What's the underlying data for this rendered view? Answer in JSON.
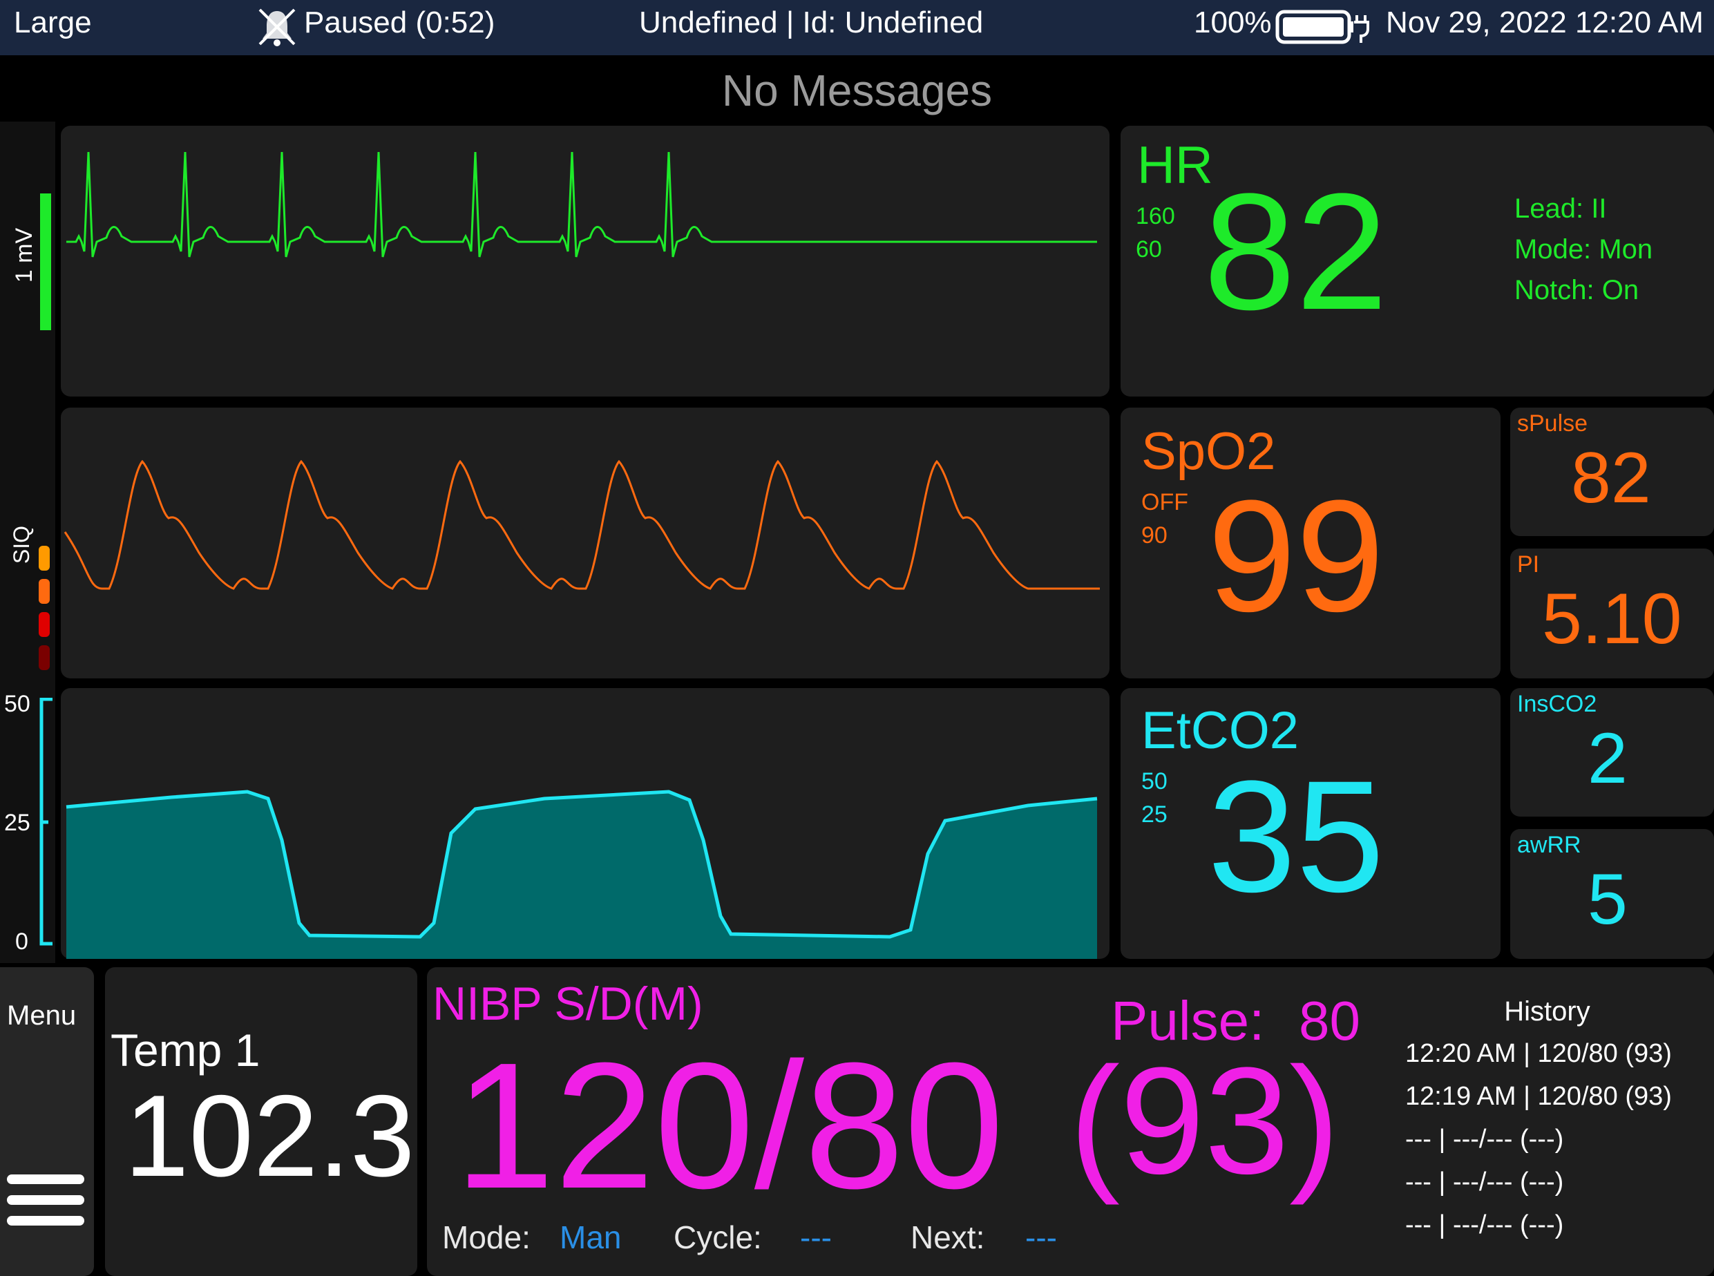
{
  "status_bar": {
    "size_label": "Large",
    "pause_status": "Paused (0:52)",
    "patient": "Undefined | Id: Undefined",
    "battery_percent": "100%",
    "datetime": "Nov 29, 2022 12:20 AM"
  },
  "messages": {
    "text": "No Messages"
  },
  "left_gutter": {
    "ecg_scale": "1 mV",
    "siq_label": "SIQ",
    "co2_scale": [
      "50",
      "25",
      "0"
    ]
  },
  "hr": {
    "label": "HR",
    "limit_high": "160",
    "limit_low": "60",
    "value": "82",
    "lead": "Lead: II",
    "mode": "Mode: Mon",
    "notch": "Notch: On",
    "color": "#1eea2a"
  },
  "spo2": {
    "label": "SpO2",
    "limit_high": "OFF",
    "limit_low": "90",
    "value": "99",
    "color": "#ff6a10"
  },
  "spulse": {
    "label": "sPulse",
    "value": "82"
  },
  "pi": {
    "label": "PI",
    "value": "5.10"
  },
  "etco2": {
    "label": "EtCO2",
    "limit_high": "50",
    "limit_low": "25",
    "value": "35",
    "color": "#20e6f2"
  },
  "insco2": {
    "label": "InsCO2",
    "value": "2"
  },
  "awrr": {
    "label": "awRR",
    "value": "5"
  },
  "menu": {
    "label": "Menu",
    "icon": "hamburger-icon"
  },
  "temp": {
    "label": "Temp 1",
    "value": "102.3"
  },
  "nibp": {
    "label": "NIBP S/D(M)",
    "sys_dia": "120/80",
    "mean": "(93)",
    "pulse_label": "Pulse:",
    "pulse_value": "80",
    "mode_label": "Mode:",
    "mode_value": "Man",
    "cycle_label": "Cycle:",
    "cycle_value": "---",
    "next_label": "Next:",
    "next_value": "---",
    "color": "#f020e6",
    "accent": "#2a8fe6"
  },
  "history": {
    "title": "History",
    "entries": [
      "12:20 AM | 120/80 (93)",
      "12:19 AM | 120/80 (93)",
      "--- | ---/--- (---)",
      "--- | ---/--- (---)",
      "--- | ---/--- (---)"
    ]
  }
}
